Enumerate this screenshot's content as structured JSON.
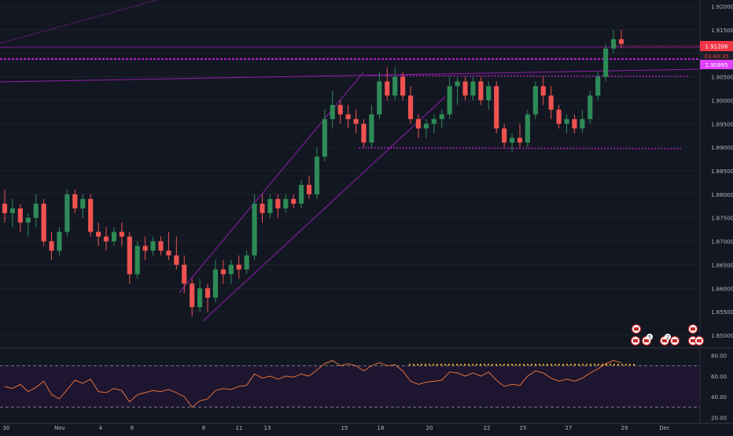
{
  "colors": {
    "background": "#131722",
    "grid": "#1e222d",
    "axis_text": "#b2b5be",
    "up": "#26a69a",
    "up_body": "#2e8b57",
    "down": "#ef5350",
    "pattern": "#c21bd1",
    "channel": "#8e1fa8",
    "rsi_line": "#e0703a",
    "rsi_band_fill": "#1e1530",
    "rsi_level_line": "#787b86",
    "dots": "#f5a623",
    "price_tag_main": "#f23645",
    "price_tag_purple": "#e040fb"
  },
  "price_axis": {
    "labels": [
      "1.92000",
      "1.91500",
      "1.91000",
      "1.90500",
      "1.90000",
      "1.89500",
      "1.89000",
      "1.88500",
      "1.88000",
      "1.87500",
      "1.87000",
      "1.86500",
      "1.86000",
      "1.85500",
      "1.85000"
    ],
    "values": [
      1.92,
      1.915,
      1.91,
      1.905,
      1.9,
      1.895,
      1.89,
      1.885,
      1.88,
      1.875,
      1.87,
      1.865,
      1.86,
      1.855,
      1.85
    ],
    "current_price": "1.91206",
    "countdown": "03:40:35",
    "level_price": "1.90995"
  },
  "rsi_axis": {
    "labels": [
      "80.00",
      "60.00",
      "40.00",
      "20.00"
    ],
    "values": [
      80,
      60,
      40,
      20
    ]
  },
  "time_axis": {
    "labels": [
      "30",
      "Nov",
      "4",
      "6",
      "8",
      "11",
      "13",
      "15",
      "18",
      "20",
      "22",
      "25",
      "27",
      "29",
      "Dec"
    ]
  },
  "event_icons": [
    "flag-icon",
    "flag-icon",
    "flag-icon",
    "flag-icon",
    "flag-icon",
    "flag-icon",
    "flag-icon",
    "flag-icon"
  ],
  "event_badges": [
    "5",
    "2"
  ],
  "chart_data": {
    "type": "candlestick",
    "title": "",
    "price_range": [
      1.848,
      1.922
    ],
    "rsi_range": [
      15,
      85
    ],
    "rsi_levels": [
      70,
      30
    ],
    "candles_approx_ohlc": [
      [
        1.878,
        1.881,
        1.874,
        1.876
      ],
      [
        1.876,
        1.879,
        1.873,
        1.877
      ],
      [
        1.877,
        1.878,
        1.872,
        1.874
      ],
      [
        1.874,
        1.876,
        1.871,
        1.875
      ],
      [
        1.875,
        1.88,
        1.873,
        1.878
      ],
      [
        1.878,
        1.879,
        1.869,
        1.87
      ],
      [
        1.87,
        1.872,
        1.866,
        1.868
      ],
      [
        1.868,
        1.873,
        1.867,
        1.872
      ],
      [
        1.872,
        1.881,
        1.871,
        1.88
      ],
      [
        1.88,
        1.881,
        1.876,
        1.877
      ],
      [
        1.877,
        1.88,
        1.875,
        1.879
      ],
      [
        1.879,
        1.88,
        1.871,
        1.872
      ],
      [
        1.872,
        1.874,
        1.869,
        1.871
      ],
      [
        1.871,
        1.873,
        1.868,
        1.87
      ],
      [
        1.87,
        1.873,
        1.869,
        1.872
      ],
      [
        1.872,
        1.874,
        1.869,
        1.871
      ],
      [
        1.871,
        1.872,
        1.861,
        1.863
      ],
      [
        1.863,
        1.87,
        1.862,
        1.869
      ],
      [
        1.869,
        1.871,
        1.866,
        1.868
      ],
      [
        1.868,
        1.871,
        1.867,
        1.87
      ],
      [
        1.87,
        1.871,
        1.867,
        1.868
      ],
      [
        1.868,
        1.872,
        1.866,
        1.867
      ],
      [
        1.867,
        1.871,
        1.864,
        1.865
      ],
      [
        1.865,
        1.867,
        1.859,
        1.861
      ],
      [
        1.861,
        1.862,
        1.854,
        1.856
      ],
      [
        1.856,
        1.862,
        1.855,
        1.86
      ],
      [
        1.86,
        1.861,
        1.855,
        1.858
      ],
      [
        1.858,
        1.866,
        1.857,
        1.864
      ],
      [
        1.864,
        1.866,
        1.861,
        1.863
      ],
      [
        1.863,
        1.866,
        1.861,
        1.865
      ],
      [
        1.865,
        1.867,
        1.862,
        1.864
      ],
      [
        1.864,
        1.868,
        1.863,
        1.867
      ],
      [
        1.867,
        1.88,
        1.866,
        1.878
      ],
      [
        1.878,
        1.88,
        1.874,
        1.876
      ],
      [
        1.876,
        1.88,
        1.875,
        1.879
      ],
      [
        1.879,
        1.88,
        1.875,
        1.877
      ],
      [
        1.877,
        1.88,
        1.876,
        1.879
      ],
      [
        1.879,
        1.88,
        1.877,
        1.878
      ],
      [
        1.878,
        1.883,
        1.877,
        1.882
      ],
      [
        1.882,
        1.884,
        1.879,
        1.88
      ],
      [
        1.88,
        1.89,
        1.879,
        1.888
      ],
      [
        1.888,
        1.898,
        1.887,
        1.896
      ],
      [
        1.896,
        1.902,
        1.894,
        1.899
      ],
      [
        1.899,
        1.9,
        1.895,
        1.897
      ],
      [
        1.897,
        1.899,
        1.894,
        1.896
      ],
      [
        1.896,
        1.898,
        1.893,
        1.895
      ],
      [
        1.895,
        1.896,
        1.89,
        1.891
      ],
      [
        1.891,
        1.899,
        1.89,
        1.897
      ],
      [
        1.897,
        1.906,
        1.896,
        1.904
      ],
      [
        1.904,
        1.907,
        1.9,
        1.901
      ],
      [
        1.901,
        1.907,
        1.9,
        1.905
      ],
      [
        1.905,
        1.906,
        1.9,
        1.901
      ],
      [
        1.901,
        1.903,
        1.895,
        1.896
      ],
      [
        1.896,
        1.897,
        1.892,
        1.894
      ],
      [
        1.894,
        1.896,
        1.892,
        1.895
      ],
      [
        1.895,
        1.897,
        1.893,
        1.896
      ],
      [
        1.896,
        1.898,
        1.894,
        1.897
      ],
      [
        1.897,
        1.905,
        1.896,
        1.903
      ],
      [
        1.903,
        1.905,
        1.899,
        1.904
      ],
      [
        1.904,
        1.905,
        1.9,
        1.901
      ],
      [
        1.901,
        1.905,
        1.9,
        1.904
      ],
      [
        1.904,
        1.905,
        1.899,
        1.9
      ],
      [
        1.9,
        1.904,
        1.898,
        1.903
      ],
      [
        1.903,
        1.904,
        1.893,
        1.894
      ],
      [
        1.894,
        1.895,
        1.89,
        1.891
      ],
      [
        1.891,
        1.893,
        1.889,
        1.892
      ],
      [
        1.892,
        1.895,
        1.89,
        1.891
      ],
      [
        1.891,
        1.898,
        1.89,
        1.897
      ],
      [
        1.897,
        1.904,
        1.896,
        1.903
      ],
      [
        1.903,
        1.905,
        1.899,
        1.901
      ],
      [
        1.901,
        1.903,
        1.896,
        1.898
      ],
      [
        1.898,
        1.899,
        1.894,
        1.895
      ],
      [
        1.895,
        1.897,
        1.893,
        1.896
      ],
      [
        1.896,
        1.897,
        1.893,
        1.894
      ],
      [
        1.894,
        1.898,
        1.893,
        1.896
      ],
      [
        1.896,
        1.902,
        1.895,
        1.901
      ],
      [
        1.901,
        1.906,
        1.9,
        1.905
      ],
      [
        1.905,
        1.912,
        1.904,
        1.911
      ],
      [
        1.911,
        1.915,
        1.91,
        1.913
      ],
      [
        1.913,
        1.915,
        1.911,
        1.912
      ]
    ],
    "rsi_values": [
      50,
      48,
      52,
      45,
      49,
      55,
      42,
      38,
      47,
      56,
      53,
      57,
      45,
      44,
      48,
      46,
      35,
      42,
      44,
      46,
      45,
      47,
      44,
      40,
      30,
      36,
      38,
      46,
      48,
      47,
      50,
      51,
      62,
      58,
      60,
      57,
      60,
      59,
      62,
      60,
      66,
      72,
      75,
      70,
      72,
      70,
      65,
      70,
      73,
      70,
      71,
      65,
      55,
      52,
      54,
      55,
      56,
      64,
      63,
      60,
      63,
      60,
      64,
      56,
      50,
      52,
      51,
      60,
      65,
      63,
      58,
      55,
      57,
      55,
      58,
      63,
      67,
      72,
      75,
      73
    ]
  }
}
